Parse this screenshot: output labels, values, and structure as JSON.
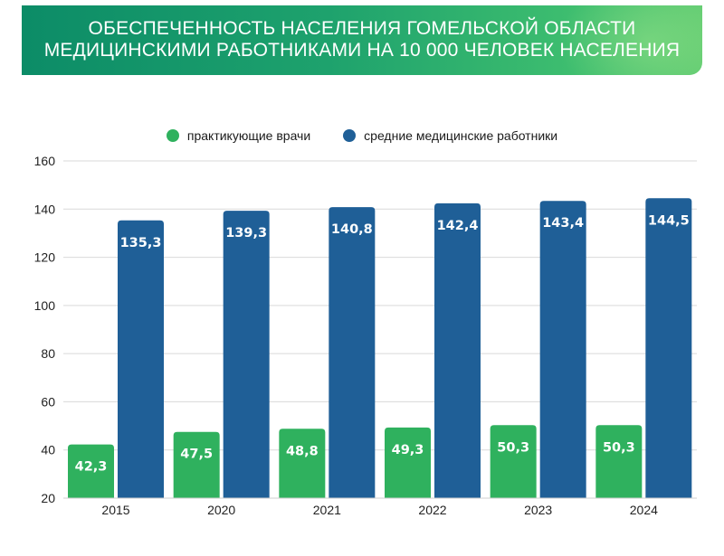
{
  "header": {
    "title_line1": "ОБЕСПЕЧЕННОСТЬ НАСЕЛЕНИЯ ГОМЕЛЬСКОЙ ОБЛАСТИ",
    "title_line2": "МЕДИЦИНСКИМИ РАБОТНИКАМИ НА 10 000 ЧЕЛОВЕК НАСЕЛЕНИЯ"
  },
  "colors": {
    "doctors": "#2fb15e",
    "nurses": "#1f5f97",
    "grid": "#d9d9d9",
    "axis_text": "#222222"
  },
  "chart_data": {
    "type": "bar",
    "title": "ОБЕСПЕЧЕННОСТЬ НАСЕЛЕНИЯ ГОМЕЛЬСКОЙ ОБЛАСТИ МЕДИЦИНСКИМИ РАБОТНИКАМИ НА 10 000 ЧЕЛОВЕК НАСЕЛЕНИЯ",
    "categories": [
      "2015",
      "2020",
      "2021",
      "2022",
      "2023",
      "2024"
    ],
    "series": [
      {
        "name": "практикующие врачи",
        "values": [
          42.3,
          47.5,
          48.8,
          49.3,
          50.3,
          50.3
        ],
        "labels": [
          "42,3",
          "47,5",
          "48,8",
          "49,3",
          "50,3",
          "50,3"
        ]
      },
      {
        "name": "средние медицинские работники",
        "values": [
          135.3,
          139.3,
          140.8,
          142.4,
          143.4,
          144.5
        ],
        "labels": [
          "135,3",
          "139,3",
          "140,8",
          "142,4",
          "143,4",
          "144,5"
        ]
      }
    ],
    "ylim": [
      20,
      160
    ],
    "yticks": [
      20,
      40,
      60,
      80,
      100,
      120,
      140,
      160
    ],
    "xlabel": "",
    "ylabel": "",
    "grid": true,
    "legend_position": "top-center"
  }
}
